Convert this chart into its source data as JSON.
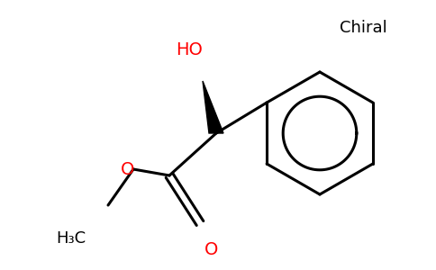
{
  "background_color": "#ffffff",
  "line_color": "#000000",
  "red_color": "#ff0000",
  "line_width": 2.2,
  "figsize": [
    4.84,
    3.0
  ],
  "dpi": 100,
  "chiral_text": "Chiral",
  "HO_text": "HO",
  "O_ester_text": "O",
  "O_carbonyl_text": "O",
  "H3C_text": "H₃C"
}
